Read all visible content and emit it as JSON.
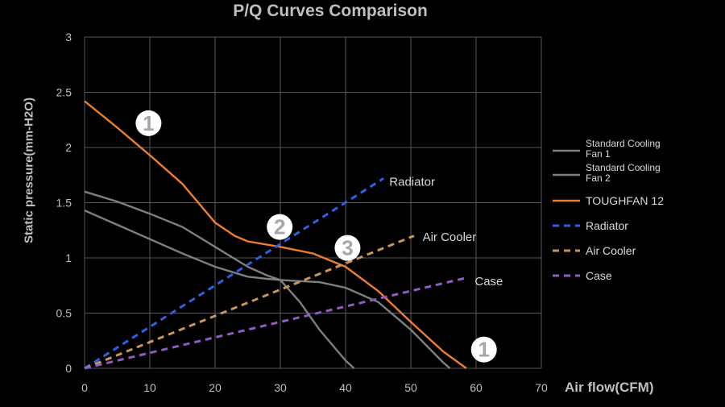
{
  "chart_data": {
    "type": "line",
    "title": "P/Q Curves Comparison",
    "xlabel": "Air flow(CFM)",
    "ylabel": "Static pressure(mm-H2O)",
    "xlim": [
      0,
      70
    ],
    "ylim": [
      0,
      3
    ],
    "xticks": [
      "0",
      "10",
      "20",
      "30",
      "40",
      "50",
      "60",
      "70"
    ],
    "yticks": [
      "0",
      "0.5",
      "1",
      "1.5",
      "2",
      "2.5",
      "3"
    ],
    "grid": true,
    "legend_position": "right",
    "series": [
      {
        "name": "Standard Cooling Fan 1",
        "color": "#7f7f7f",
        "dash": false,
        "x": [
          0,
          5,
          10,
          15,
          20,
          25,
          28,
          30,
          33,
          36,
          40,
          45,
          50,
          55,
          56
        ],
        "y": [
          1.43,
          1.3,
          1.17,
          1.04,
          0.92,
          0.83,
          0.81,
          0.8,
          0.79,
          0.78,
          0.73,
          0.6,
          0.35,
          0.05,
          0
        ]
      },
      {
        "name": "Standard Cooling Fan 2",
        "color": "#7f7f7f",
        "dash": false,
        "x": [
          0,
          5,
          10,
          15,
          20,
          25,
          28,
          30,
          33,
          36,
          40,
          41.3
        ],
        "y": [
          1.6,
          1.51,
          1.4,
          1.28,
          1.1,
          0.92,
          0.84,
          0.8,
          0.6,
          0.35,
          0.07,
          0
        ]
      },
      {
        "name": "TOUGHFAN 12",
        "color": "#ed7d31",
        "dash": false,
        "x": [
          0,
          5,
          10,
          15,
          20,
          23,
          25,
          30,
          35,
          40,
          45,
          50,
          55,
          58.5
        ],
        "y": [
          2.42,
          2.18,
          1.93,
          1.67,
          1.32,
          1.2,
          1.15,
          1.1,
          1.04,
          0.92,
          0.7,
          0.42,
          0.15,
          0
        ]
      },
      {
        "name": "Radiator",
        "color": "#2e5fe6",
        "dash": true,
        "x": [
          0,
          45.8
        ],
        "y": [
          0,
          1.72
        ]
      },
      {
        "name": "Air Cooler",
        "color": "#c8955c",
        "dash": true,
        "x": [
          0,
          50.5
        ],
        "y": [
          0,
          1.2
        ]
      },
      {
        "name": "Case",
        "color": "#8e5cc4",
        "dash": true,
        "x": [
          0,
          58.5
        ],
        "y": [
          0,
          0.82
        ]
      }
    ],
    "curve_labels": [
      {
        "text": "Radiator",
        "x": 46.7,
        "y": 1.69
      },
      {
        "text": "Air Cooler",
        "x": 51.8,
        "y": 1.19
      },
      {
        "text": "Case",
        "x": 59.8,
        "y": 0.79
      }
    ],
    "markers": [
      {
        "text": "1",
        "x": 9.8,
        "y": 2.22
      },
      {
        "text": "2",
        "x": 29.9,
        "y": 1.28
      },
      {
        "text": "3",
        "x": 40.3,
        "y": 1.09
      },
      {
        "text": "1",
        "x": 61.2,
        "y": 0.17
      }
    ]
  }
}
